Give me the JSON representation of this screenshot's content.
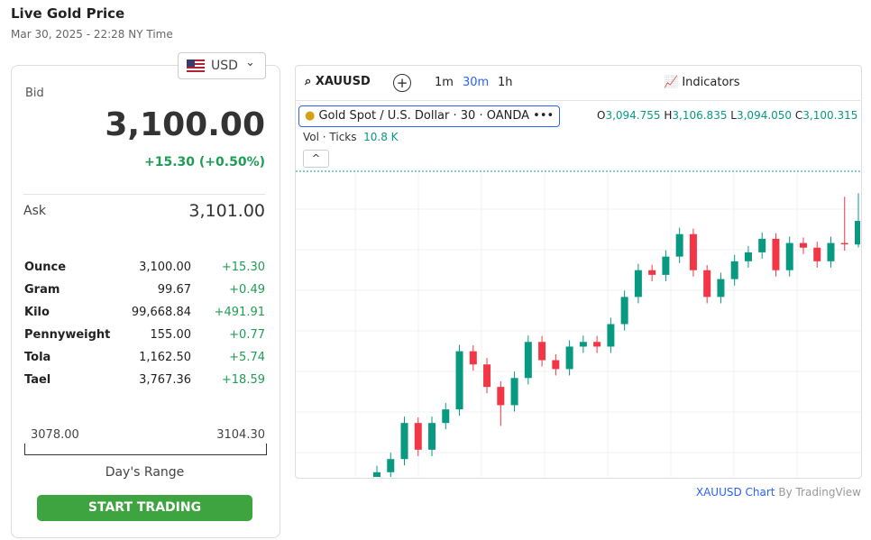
{
  "header": {
    "title": "Live Gold Price",
    "date": "Mar 30, 2025 - 22:28 NY Time"
  },
  "currency": "USD",
  "bid": {
    "label": "Bid",
    "value": "3,100.00",
    "change": "+15.30 (+0.50%)"
  },
  "ask": {
    "label": "Ask",
    "value": "3,101.00"
  },
  "units": [
    [
      "Ounce",
      "3,100.00",
      "+15.30"
    ],
    [
      "Gram",
      "99.67",
      "+0.49"
    ],
    [
      "Kilo",
      "99,668.84",
      "+491.91"
    ],
    [
      "Pennyweight",
      "155.00",
      "+0.77"
    ],
    [
      "Tola",
      "1,162.50",
      "+5.74"
    ],
    [
      "Tael",
      "3,767.36",
      "+18.59"
    ]
  ],
  "range": {
    "low": "3078.00",
    "high": "3104.30",
    "label": "Day's Range"
  },
  "button": "START TRADING",
  "toolbar": {
    "symbol": "XAUUSD",
    "intervals": [
      "1m",
      "30m",
      "1h"
    ],
    "indicators": "Indicators"
  },
  "legend": {
    "name": "Gold Spot / U.S. Dollar · 30 · OANDA",
    "o_label": "O",
    "o": "3,094.755",
    "h_label": "H",
    "h": "3,106.835",
    "l_label": "L",
    "l": "3,094.050",
    "c_label": "C",
    "c": "3,100.315",
    "vol_label": "Vol · Ticks",
    "vol": "10.8 K"
  },
  "chart_data": {
    "type": "candlestick",
    "open": [
      3039.5,
      3041.1,
      3044.2,
      3052.7,
      3046.4,
      3052.7,
      3055.9,
      3069.6,
      3066.5,
      3061.2,
      3056.9,
      3063.3,
      3071.8,
      3067.5,
      3065.4,
      3070.7,
      3071.8,
      3070.7,
      3076.0,
      3082.4,
      3088.7,
      3087.6,
      3091.9,
      3097.2,
      3088.7,
      3082.4,
      3086.6,
      3090.8,
      3092.9,
      3096.1,
      3088.7,
      3095.1,
      3094.0,
      3090.8,
      3095.1,
      3094.755
    ],
    "high": [
      3042.6,
      3045.7,
      3054.2,
      3054.0,
      3054.2,
      3057.4,
      3071.1,
      3071.0,
      3068.0,
      3062.5,
      3064.8,
      3073.3,
      3073.2,
      3068.9,
      3072.2,
      3073.3,
      3073.2,
      3077.5,
      3083.9,
      3090.2,
      3090.0,
      3093.4,
      3098.7,
      3098.5,
      3089.9,
      3088.1,
      3092.3,
      3094.4,
      3097.6,
      3097.4,
      3096.6,
      3096.4,
      3095.4,
      3096.6,
      3106.0,
      3106.835
    ],
    "low": [
      3038.0,
      3039.6,
      3042.7,
      3044.9,
      3044.9,
      3051.2,
      3054.4,
      3065.0,
      3059.7,
      3052.0,
      3055.4,
      3061.8,
      3066.0,
      3063.9,
      3063.9,
      3069.2,
      3069.2,
      3069.2,
      3074.5,
      3080.9,
      3086.1,
      3086.1,
      3090.4,
      3087.2,
      3080.9,
      3080.9,
      3085.1,
      3089.3,
      3091.4,
      3087.2,
      3087.2,
      3092.5,
      3089.3,
      3089.3,
      3093.3,
      3094.05
    ],
    "close": [
      3041.1,
      3044.2,
      3052.7,
      3046.4,
      3052.7,
      3055.9,
      3069.6,
      3066.5,
      3061.2,
      3056.9,
      3063.3,
      3071.8,
      3067.5,
      3065.4,
      3070.7,
      3071.8,
      3070.7,
      3076.0,
      3082.4,
      3088.7,
      3087.6,
      3091.9,
      3097.2,
      3088.7,
      3082.4,
      3086.6,
      3090.8,
      3092.9,
      3096.1,
      3088.7,
      3095.1,
      3094.0,
      3090.8,
      3095.1,
      3094.8,
      3100.315
    ],
    "ylim": [
      3040,
      3112
    ],
    "up_color": "#089981",
    "down_color": "#f23645",
    "grid": true
  },
  "footer": {
    "symbol": "XAUUSD Chart",
    "by": "By TradingView"
  }
}
